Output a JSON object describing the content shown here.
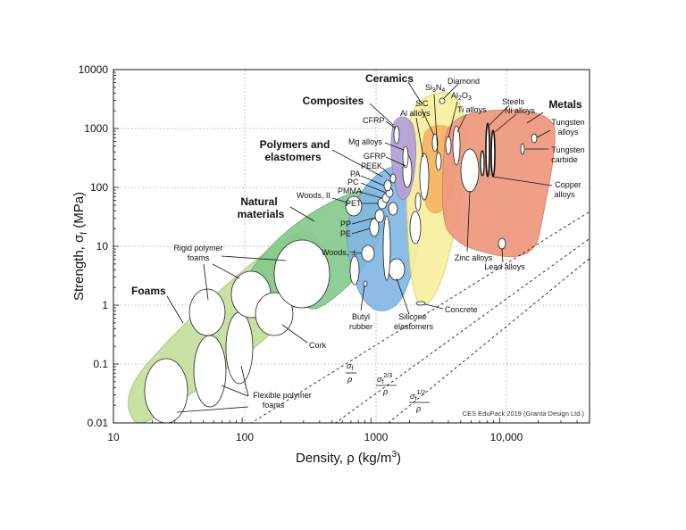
{
  "chart_data": {
    "type": "scatter",
    "title": "",
    "xlabel": "Density, ρ  (kg/m³)",
    "ylabel": "Strength, σf  (MPa)",
    "xscale": "log",
    "yscale": "log",
    "xlim": [
      10,
      50000
    ],
    "ylim": [
      0.01,
      10000
    ],
    "x_ticks": [
      "10",
      "100",
      "1000",
      "10,000"
    ],
    "y_ticks": [
      "0.01",
      "0.1",
      "1",
      "10",
      "100",
      "1000",
      "10000"
    ],
    "grid": true,
    "credit": "CES EduPack 2019 (Granta Design Ltd.)",
    "families": [
      {
        "name": "Foams",
        "color": "#c8e0a0",
        "x_range": [
          13,
          300
        ],
        "y_range": [
          0.013,
          6
        ]
      },
      {
        "name": "Natural materials",
        "color": "#84c98c",
        "x_range": [
          100,
          1400
        ],
        "y_range": [
          0.3,
          180
        ]
      },
      {
        "name": "Polymers and elastomers",
        "color": "#82b8e4",
        "x_range": [
          600,
          2200
        ],
        "y_range": [
          0.6,
          200
        ]
      },
      {
        "name": "Composites",
        "color": "#b4a0d4",
        "x_range": [
          1350,
          2300
        ],
        "y_range": [
          50,
          1200
        ]
      },
      {
        "name": "Ceramics",
        "color": "#f8f0a0",
        "x_range": [
          1800,
          4600
        ],
        "y_range": [
          0.8,
          5000
        ]
      },
      {
        "name": "Metals",
        "color": "#ee9a80",
        "x_range": [
          2000,
          25000
        ],
        "y_range": [
          7,
          1600
        ]
      }
    ],
    "materials": [
      {
        "name": "Rigid polymer foams",
        "x": 50,
        "y": 1.3
      },
      {
        "name": "Flexible polymer foams",
        "x": 30,
        "y": 0.03
      },
      {
        "name": "Cork",
        "x": 170,
        "y": 1.3
      },
      {
        "name": "Woods, II",
        "x": 700,
        "y": 60
      },
      {
        "name": "Woods, ⊥",
        "x": 770,
        "y": 8
      },
      {
        "name": "Butyl rubber",
        "x": 900,
        "y": 2.5
      },
      {
        "name": "Silicone elastomers",
        "x": 1150,
        "y": 4
      },
      {
        "name": "PA",
        "x": 1130,
        "y": 70
      },
      {
        "name": "PC",
        "x": 1200,
        "y": 65
      },
      {
        "name": "PMMA",
        "x": 1190,
        "y": 55
      },
      {
        "name": "PEEK",
        "x": 1300,
        "y": 100
      },
      {
        "name": "PET",
        "x": 1350,
        "y": 60
      },
      {
        "name": "PP",
        "x": 900,
        "y": 30
      },
      {
        "name": "PE",
        "x": 940,
        "y": 20
      },
      {
        "name": "CFRP",
        "x": 1550,
        "y": 900
      },
      {
        "name": "GFRP",
        "x": 1850,
        "y": 200
      },
      {
        "name": "Mg alloys",
        "x": 1800,
        "y": 200
      },
      {
        "name": "Al alloys",
        "x": 2700,
        "y": 300
      },
      {
        "name": "SiC",
        "x": 3150,
        "y": 1000
      },
      {
        "name": "Si3N4",
        "x": 3200,
        "y": 1000
      },
      {
        "name": "Diamond",
        "x": 3500,
        "y": 3000
      },
      {
        "name": "Al2O3",
        "x": 3900,
        "y": 500
      },
      {
        "name": "Ti alloys",
        "x": 4500,
        "y": 900
      },
      {
        "name": "Steels",
        "x": 7800,
        "y": 500
      },
      {
        "name": "Ni alloys",
        "x": 8500,
        "y": 600
      },
      {
        "name": "Tungsten alloys",
        "x": 17500,
        "y": 800
      },
      {
        "name": "Tungsten carbide",
        "x": 15600,
        "y": 500
      },
      {
        "name": "Copper alloys",
        "x": 8900,
        "y": 250
      },
      {
        "name": "Zinc alloys",
        "x": 5500,
        "y": 150
      },
      {
        "name": "Lead alloys",
        "x": 11300,
        "y": 10
      },
      {
        "name": "Concrete",
        "x": 2400,
        "y": 1.1
      }
    ],
    "guide_lines": [
      {
        "label_top": "σf",
        "label_bottom": "ρ",
        "exponent": "1"
      },
      {
        "label_top": "σf 2/3",
        "label_bottom": "ρ",
        "exponent": "2/3"
      },
      {
        "label_top": "σf 1/2",
        "label_bottom": "ρ",
        "exponent": "1/2"
      }
    ],
    "text": {
      "foams": "Foams",
      "natural_1": "Natural",
      "natural_2": "materials",
      "polymers_1": "Polymers and",
      "polymers_2": "elastomers",
      "composites": "Composites",
      "ceramics": "Ceramics",
      "metals": "Metals",
      "rigid_1": "Rigid polymer",
      "rigid_2": "foams",
      "flex_1": "Flexible polymer",
      "flex_2": "foams",
      "cork": "Cork",
      "woods_ll": "Woods, II",
      "woods_perp": "Woods, ⊥",
      "butyl_1": "Butyl",
      "butyl_2": "rubber",
      "silicone_1": "Silicone",
      "silicone_2": "elastomers",
      "pa": "PA",
      "pc": "PC",
      "pmma": "PMMA",
      "peek": "PEEK",
      "pet": "PET",
      "pp": "PP",
      "pe": "PE",
      "cfrp": "CFRP",
      "gfrp": "GFRP",
      "mg": "Mg alloys",
      "al": "Al alloys",
      "sic": "SiC",
      "si3n4": "Si",
      "si3n4_a": "3",
      "si3n4_b": "N",
      "si3n4_c": "4",
      "diamond": "Diamond",
      "al2o3": "Al",
      "al2o3_a": "2",
      "al2o3_b": "O",
      "al2o3_c": "3",
      "ti": "Ti alloys",
      "steels": "Steels",
      "ni": "Ni alloys",
      "tungsten_1": "Tungsten",
      "tungsten_2": "alloys",
      "wc_1": "Tungsten",
      "wc_2": "carbide",
      "copper_1": "Copper",
      "copper_2": "alloys",
      "zinc": "Zinc alloys",
      "lead": "Lead alloys",
      "concrete": "Concrete",
      "g1_top": "σ",
      "g1_sub": "f",
      "g1_bot": "ρ",
      "g2_top": "σ",
      "g2_sub": "f",
      "g2_sup": "2/3",
      "g2_bot": "ρ",
      "g3_top": "σ",
      "g3_sub": "f",
      "g3_sup": "1/2",
      "g3_bot": "ρ",
      "xaxis_main": "Density, ρ  (kg/m",
      "xaxis_sup": "3",
      "xaxis_end": ")",
      "yaxis_main": "Strength, σ",
      "yaxis_sub": "f",
      "yaxis_end": " (MPa)"
    }
  }
}
